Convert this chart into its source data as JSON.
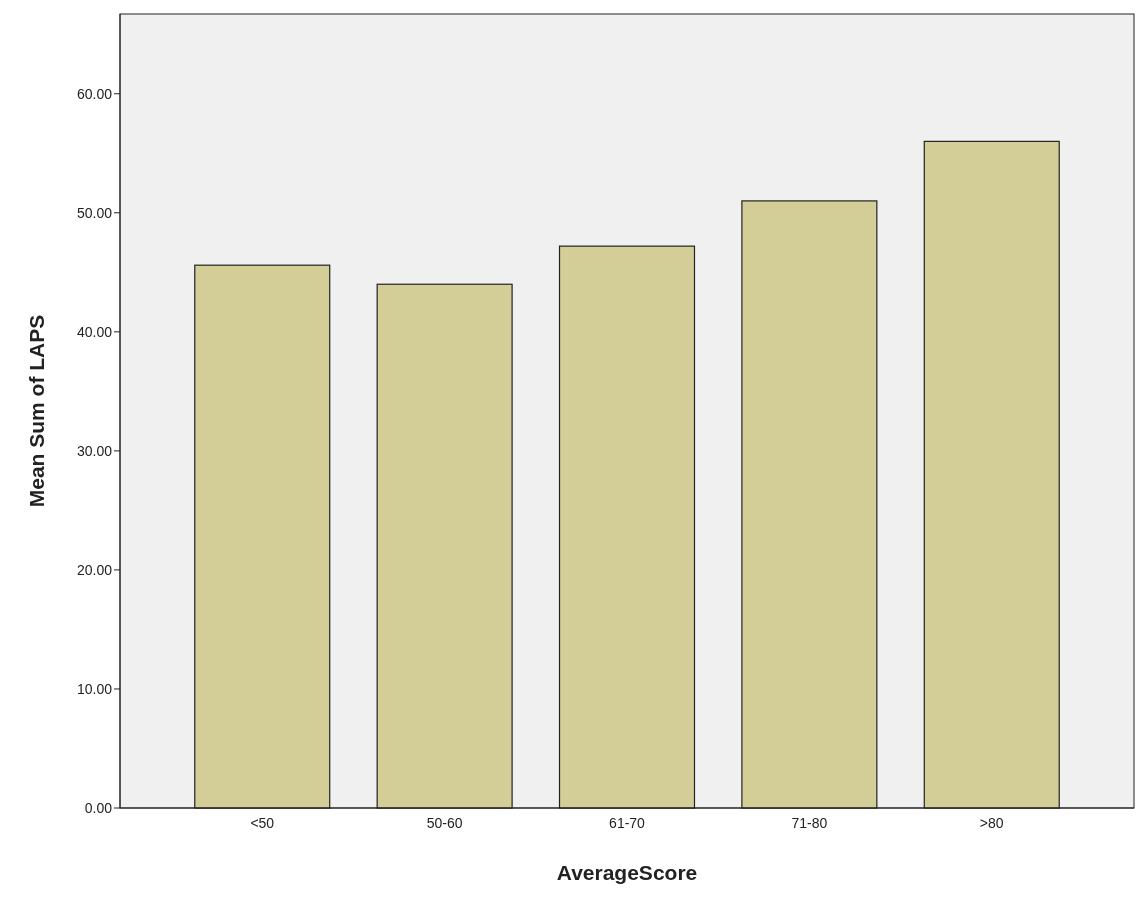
{
  "chart_data": {
    "type": "bar",
    "xlabel": "AverageScore",
    "ylabel": "Mean Sum of LAPS",
    "categories": [
      "<50",
      "50-60",
      "61-70",
      "71-80",
      ">80"
    ],
    "values": [
      45.6,
      44.0,
      47.2,
      51.0,
      56.0
    ],
    "color": "#d3ce97",
    "ylim": [
      0,
      66.7
    ],
    "yticks": [
      {
        "value": 0,
        "label": "0.00"
      },
      {
        "value": 10,
        "label": "10.00"
      },
      {
        "value": 20,
        "label": "20.00"
      },
      {
        "value": 30,
        "label": "30.00"
      },
      {
        "value": 40,
        "label": "40.00"
      },
      {
        "value": 50,
        "label": "50.00"
      },
      {
        "value": 60,
        "label": "60.00"
      }
    ],
    "grid": false
  }
}
